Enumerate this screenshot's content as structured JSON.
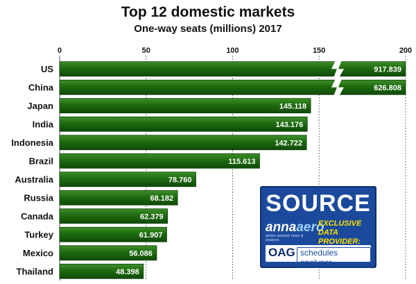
{
  "chart_data": {
    "type": "bar",
    "orientation": "horizontal",
    "title": "Top 12 domestic markets",
    "subtitle": "One-way seats (millions) 2017",
    "categories": [
      "US",
      "China",
      "Japan",
      "India",
      "Indonesia",
      "Brazil",
      "Australia",
      "Russia",
      "Canada",
      "Turkey",
      "Mexico",
      "Thailand"
    ],
    "values": [
      917.839,
      626.808,
      145.118,
      143.176,
      142.722,
      115.613,
      78.76,
      68.182,
      62.379,
      61.907,
      56.086,
      48.398
    ],
    "value_labels": [
      "917.839",
      "626.808",
      "145.118",
      "143.176",
      "142.722",
      "115.613",
      "78.760",
      "68.182",
      "62.379",
      "61.907",
      "56.086",
      "48.398"
    ],
    "xlim": [
      0,
      200
    ],
    "xticks": [
      0,
      50,
      100,
      150,
      200
    ],
    "axis_break": true,
    "grid": true,
    "bar_color": "#1e6b10"
  },
  "badge": {
    "source": "SOURCE",
    "logo_anna": "anna",
    "logo_aero": "aero",
    "logo_sub": "airline network news & analysis",
    "exclusive_line1": "EXCLUSIVE",
    "exclusive_line2": "DATA PROVIDER:",
    "oag": "OAG",
    "oag_product": "schedules analyser"
  }
}
